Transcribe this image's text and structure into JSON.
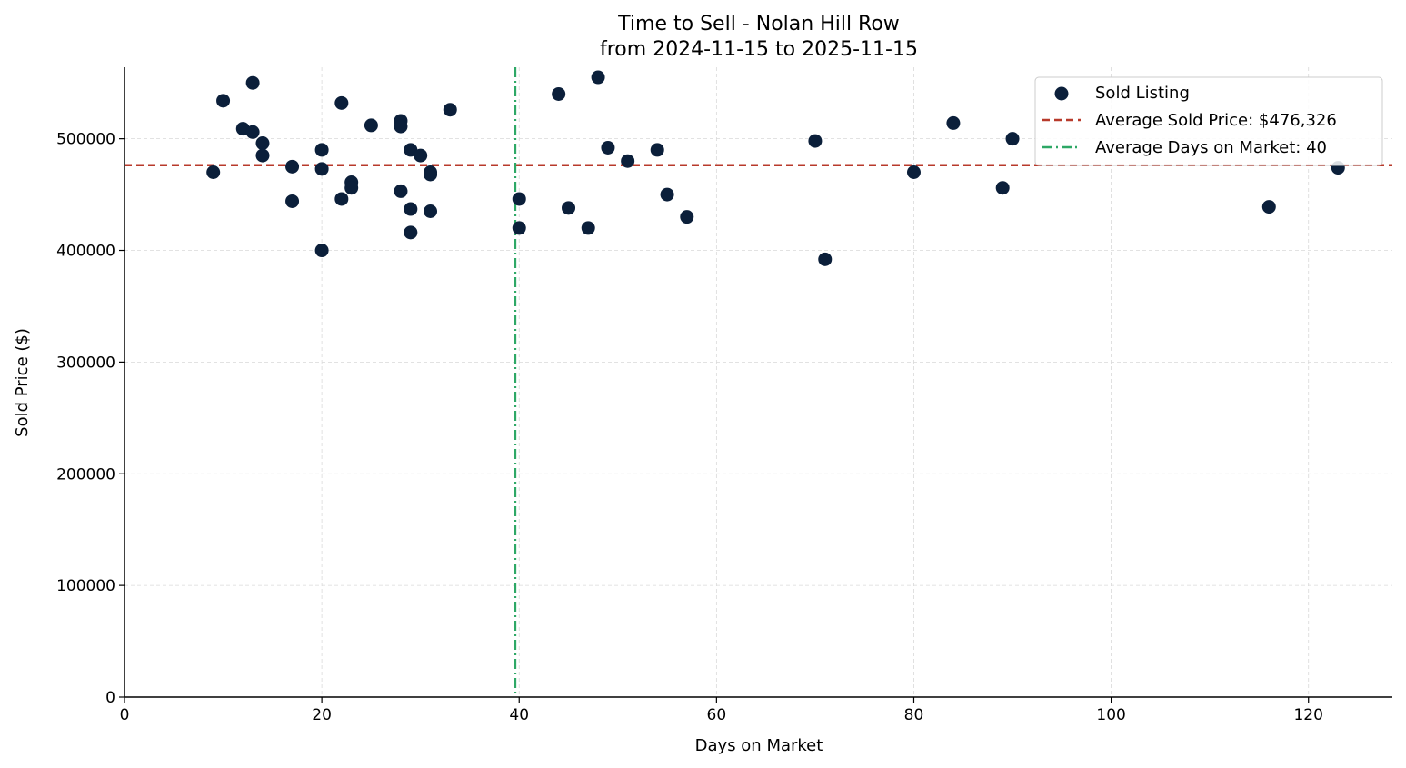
{
  "chart_data": {
    "type": "scatter",
    "title": "Time to Sell - Nolan Hill Row",
    "subtitle": "from 2024-11-15 to 2025-11-15",
    "xlabel": "Days on Market",
    "ylabel": "Sold Price ($)",
    "xlim": [
      0,
      128.5
    ],
    "ylim": [
      0,
      564000
    ],
    "xticks": [
      0,
      20,
      40,
      60,
      80,
      100,
      120
    ],
    "xtick_labels": [
      "0",
      "20",
      "40",
      "60",
      "80",
      "100",
      "120"
    ],
    "yticks": [
      0,
      100000,
      200000,
      300000,
      400000,
      500000
    ],
    "ytick_labels": [
      "0",
      "100000",
      "200000",
      "300000",
      "400000",
      "500000"
    ],
    "grid": true,
    "legend_position": "top-right",
    "series": [
      {
        "name": "Sold Listing",
        "color": "#0b1f3a",
        "points": [
          [
            9,
            470000
          ],
          [
            10,
            534000
          ],
          [
            12,
            509000
          ],
          [
            13,
            550000
          ],
          [
            13,
            506000
          ],
          [
            14,
            496000
          ],
          [
            14,
            485000
          ],
          [
            17,
            475000
          ],
          [
            17,
            444000
          ],
          [
            20,
            490000
          ],
          [
            20,
            473000
          ],
          [
            20,
            400000
          ],
          [
            22,
            532000
          ],
          [
            22,
            446000
          ],
          [
            23,
            461000
          ],
          [
            23,
            456000
          ],
          [
            25,
            512000
          ],
          [
            28,
            516000
          ],
          [
            28,
            511000
          ],
          [
            28,
            453000
          ],
          [
            29,
            490000
          ],
          [
            29,
            437000
          ],
          [
            29,
            416000
          ],
          [
            30,
            485000
          ],
          [
            31,
            470000
          ],
          [
            31,
            468000
          ],
          [
            31,
            435000
          ],
          [
            33,
            526000
          ],
          [
            40,
            446000
          ],
          [
            40,
            420000
          ],
          [
            44,
            540000
          ],
          [
            45,
            438000
          ],
          [
            47,
            420000
          ],
          [
            48,
            555000
          ],
          [
            49,
            492000
          ],
          [
            51,
            480000
          ],
          [
            54,
            490000
          ],
          [
            55,
            450000
          ],
          [
            57,
            430000
          ],
          [
            70,
            498000
          ],
          [
            71,
            392000
          ],
          [
            80,
            470000
          ],
          [
            84,
            514000
          ],
          [
            89,
            456000
          ],
          [
            90,
            500000
          ],
          [
            116,
            439000
          ],
          [
            123,
            474000
          ]
        ]
      }
    ],
    "reference_lines": [
      {
        "name": "Average Sold Price: $476,326",
        "orientation": "horizontal",
        "value": 476326,
        "style": "dashed",
        "color": "#b83a2b"
      },
      {
        "name": "Average Days on Market: 40",
        "orientation": "vertical",
        "value": 39.6,
        "style": "dashdot",
        "color": "#2ea866"
      }
    ],
    "legend": [
      "Sold Listing",
      "Average Sold Price: $476,326",
      "Average Days on Market: 40"
    ]
  }
}
